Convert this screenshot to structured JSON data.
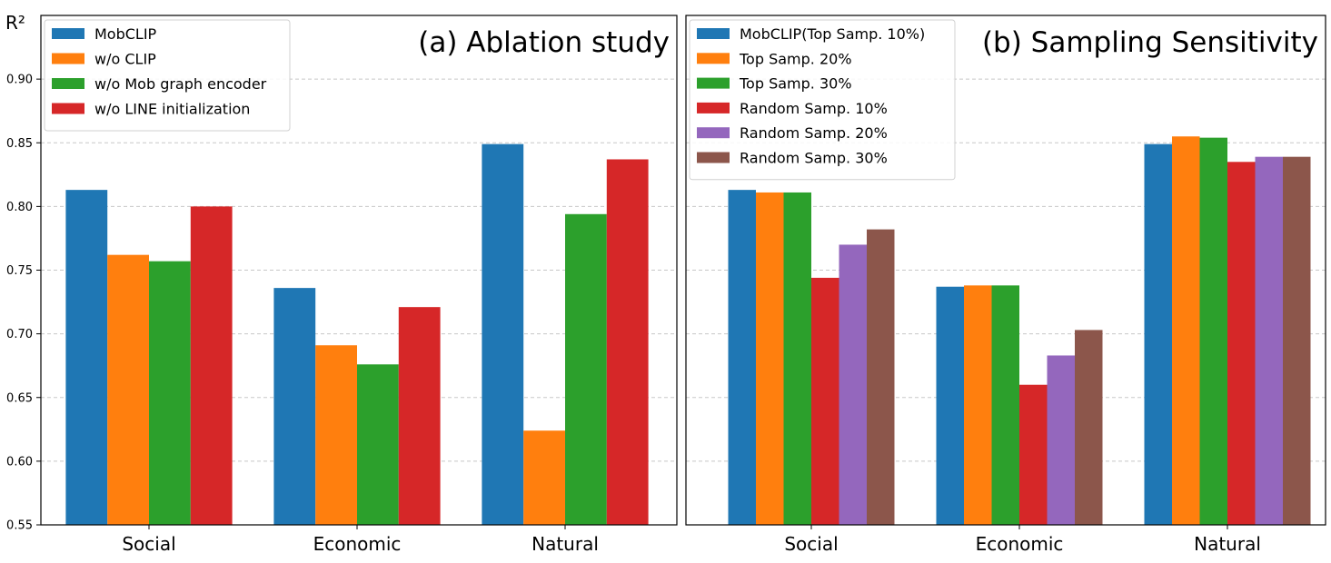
{
  "ylabel": "R²",
  "chart_data": [
    {
      "type": "bar",
      "title": "(a) Ablation study",
      "categories": [
        "Social",
        "Economic",
        "Natural"
      ],
      "ylim": [
        0.55,
        0.95
      ],
      "yticks": [
        "0.55",
        "0.60",
        "0.65",
        "0.70",
        "0.75",
        "0.80",
        "0.85",
        "0.90"
      ],
      "grid": true,
      "legend": "top-left",
      "series": [
        {
          "name": "MobCLIP",
          "color": "#1f77b4",
          "values": [
            0.813,
            0.736,
            0.849
          ]
        },
        {
          "name": "w/o CLIP",
          "color": "#ff7f0e",
          "values": [
            0.762,
            0.691,
            0.624
          ]
        },
        {
          "name": "w/o Mob graph encoder",
          "color": "#2ca02c",
          "values": [
            0.757,
            0.676,
            0.794
          ]
        },
        {
          "name": "w/o LINE initialization",
          "color": "#d62728",
          "values": [
            0.8,
            0.721,
            0.837
          ]
        }
      ]
    },
    {
      "type": "bar",
      "title": "(b) Sampling Sensitivity",
      "categories": [
        "Social",
        "Economic",
        "Natural"
      ],
      "ylim": [
        0.55,
        0.95
      ],
      "grid": true,
      "legend": "top-left",
      "series": [
        {
          "name": "MobCLIP(Top Samp. 10%)",
          "color": "#1f77b4",
          "values": [
            0.813,
            0.737,
            0.849
          ]
        },
        {
          "name": "Top Samp. 20%",
          "color": "#ff7f0e",
          "values": [
            0.811,
            0.738,
            0.855
          ]
        },
        {
          "name": "Top Samp. 30%",
          "color": "#2ca02c",
          "values": [
            0.811,
            0.738,
            0.854
          ]
        },
        {
          "name": "Random Samp. 10%",
          "color": "#d62728",
          "values": [
            0.744,
            0.66,
            0.835
          ]
        },
        {
          "name": "Random Samp. 20%",
          "color": "#9467bd",
          "values": [
            0.77,
            0.683,
            0.839
          ]
        },
        {
          "name": "Random Samp. 30%",
          "color": "#8c564b",
          "values": [
            0.782,
            0.703,
            0.839
          ]
        }
      ]
    }
  ]
}
